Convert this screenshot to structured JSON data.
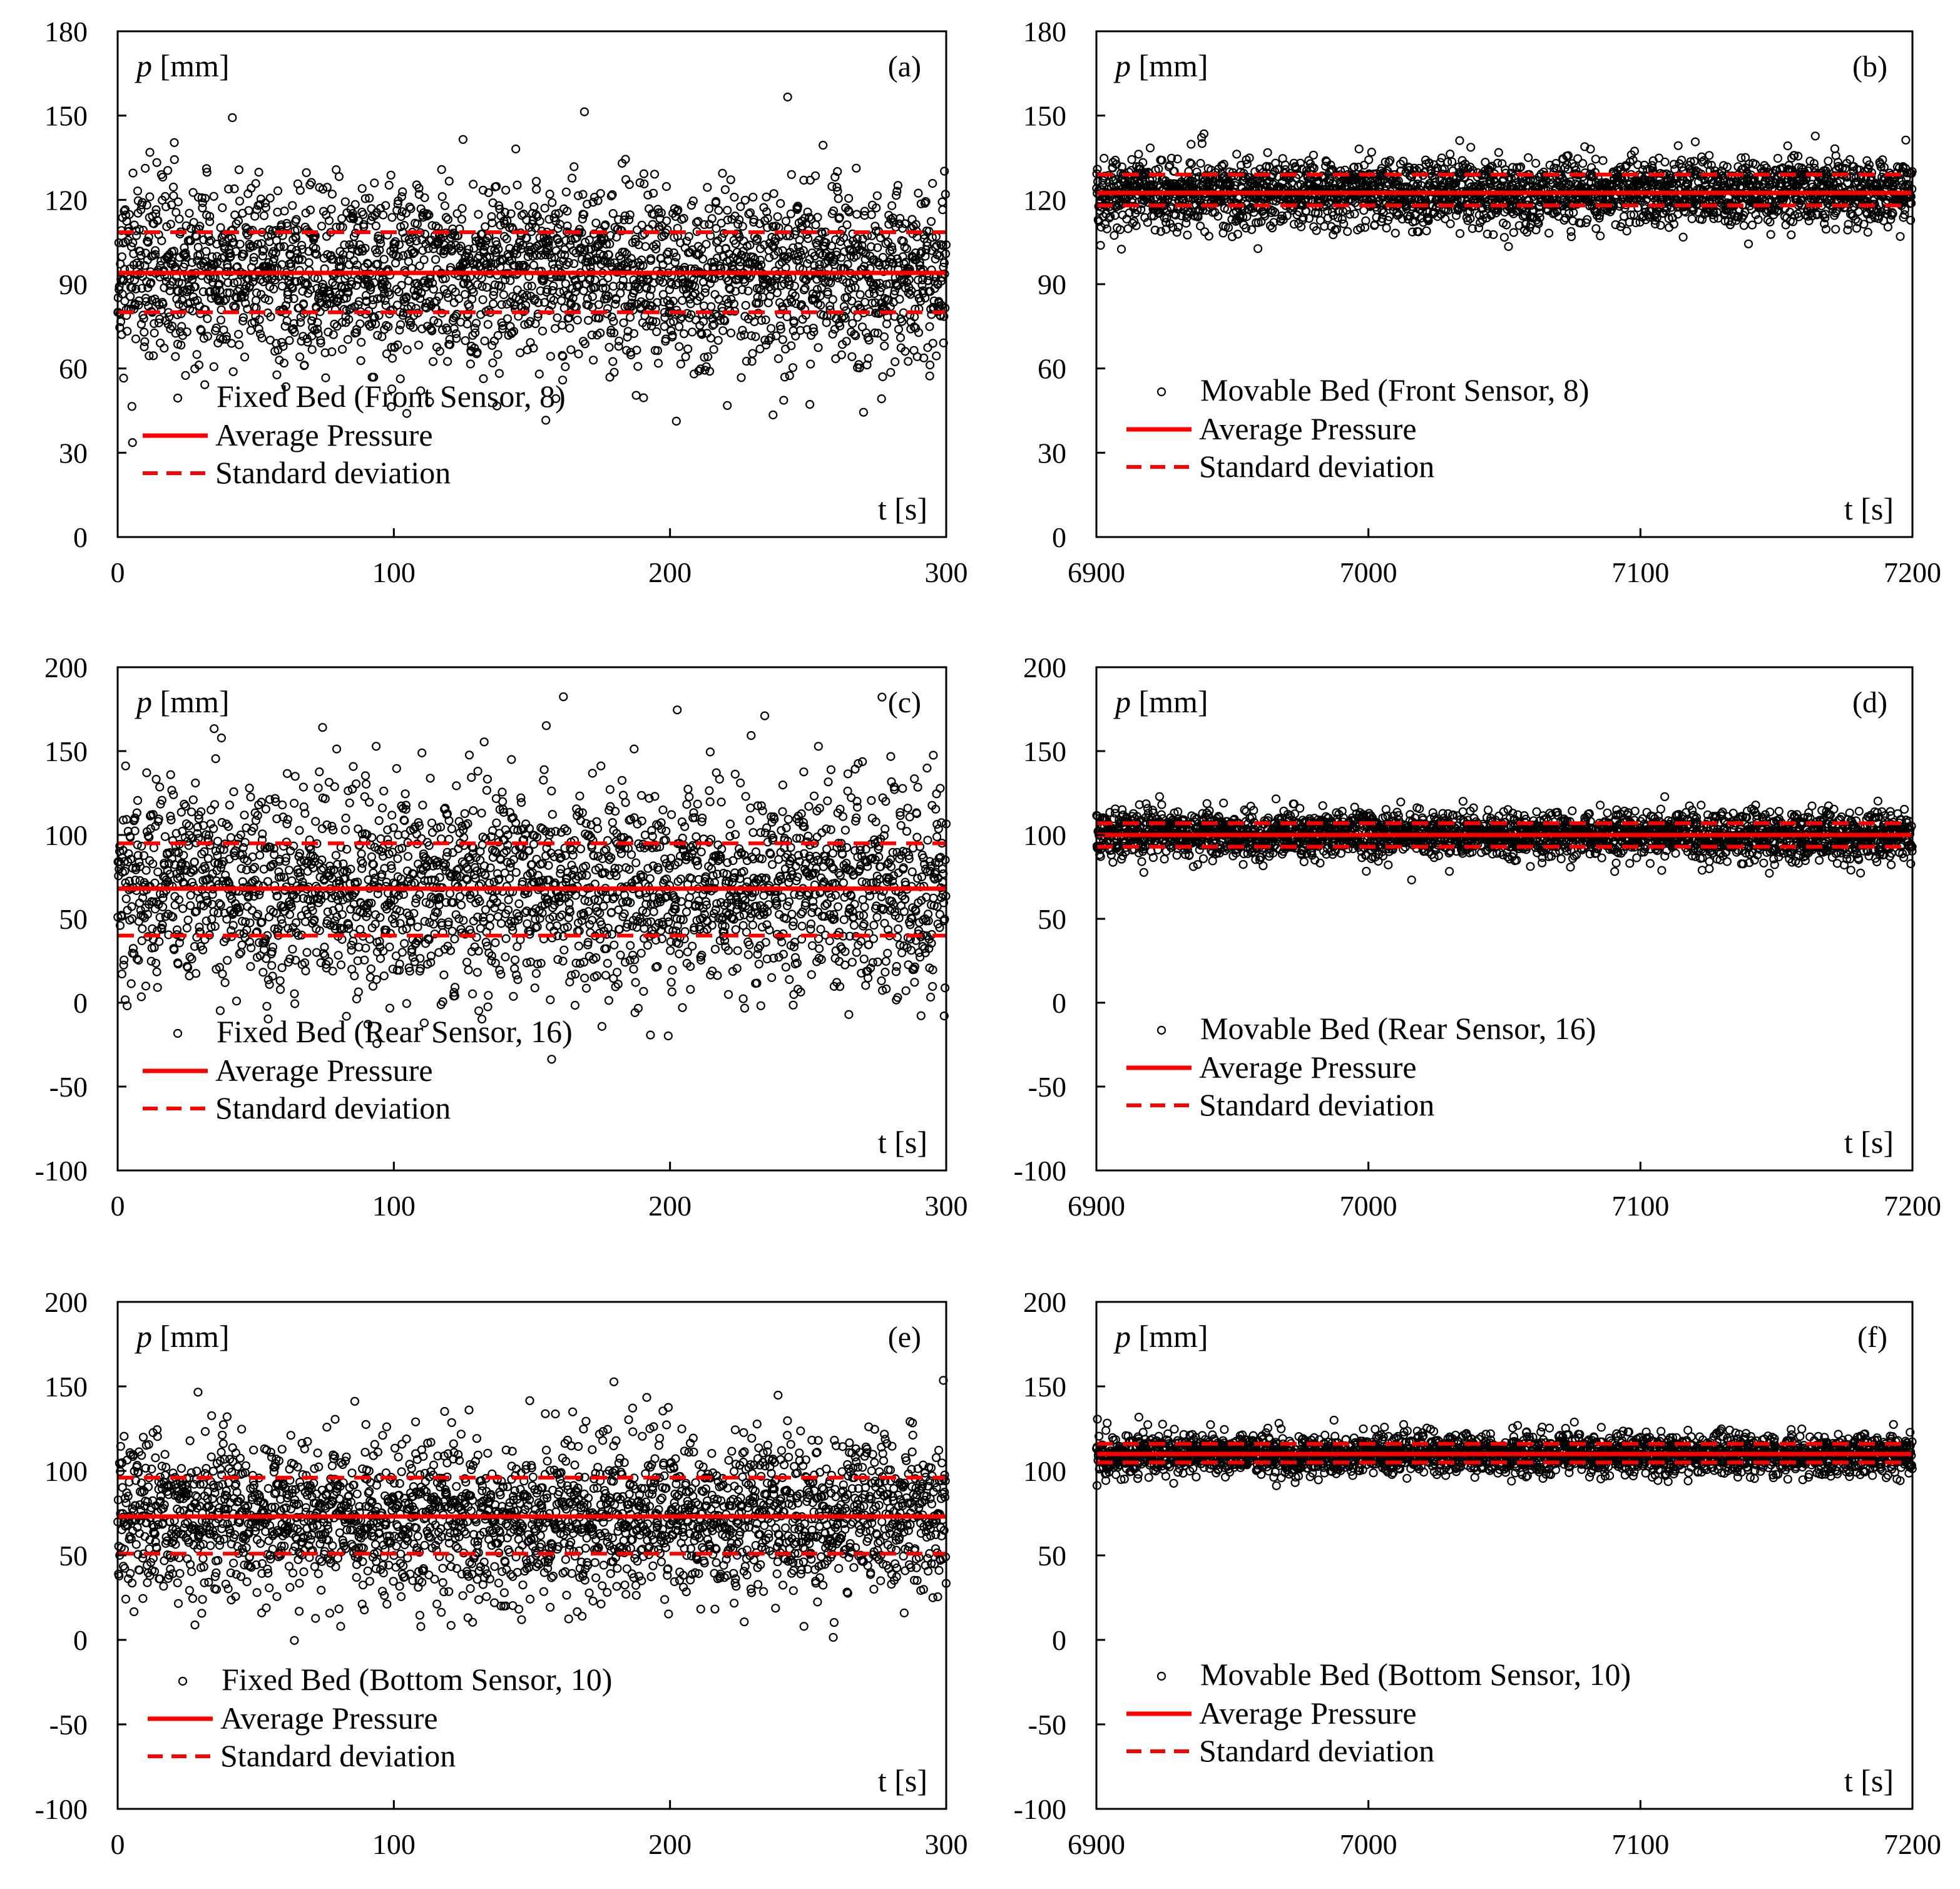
{
  "chart_data": [
    {
      "type": "scatter",
      "panel_label": "(a)",
      "ylabel_var": "p",
      "ylabel_unit": " [mm]",
      "xlabel": "t [s]",
      "xlim": [
        0,
        300
      ],
      "ylim": [
        0,
        180
      ],
      "xticks": [
        0,
        100,
        200,
        300
      ],
      "yticks": [
        0,
        30,
        60,
        90,
        120,
        150,
        180
      ],
      "mean": 94,
      "std_upper": 108.5,
      "std_lower": 80,
      "spread": 16,
      "n_points": 2600,
      "seed": 11,
      "series": [
        {
          "name": "Fixed Bed (Front Sensor, 8)",
          "marker": "open-circle"
        },
        {
          "name": "Average Pressure",
          "style": "solid",
          "color": "#ff0000"
        },
        {
          "name": "Standard deviation",
          "style": "dashed",
          "color": "#ff0000"
        }
      ]
    },
    {
      "type": "scatter",
      "panel_label": "(b)",
      "ylabel_var": "p",
      "ylabel_unit": " [mm]",
      "xlabel": "t [s]",
      "xlim": [
        6900,
        7200
      ],
      "ylim": [
        0,
        180
      ],
      "xticks": [
        6900,
        7000,
        7100,
        7200
      ],
      "yticks": [
        0,
        30,
        60,
        90,
        120,
        150,
        180
      ],
      "mean": 122.5,
      "std_upper": 129,
      "std_lower": 118,
      "spread": 6,
      "n_points": 2600,
      "seed": 22,
      "series": [
        {
          "name": "Movable Bed (Front Sensor, 8)",
          "marker": "open-circle"
        },
        {
          "name": "Average Pressure",
          "style": "solid",
          "color": "#ff0000"
        },
        {
          "name": "Standard deviation",
          "style": "dashed",
          "color": "#ff0000"
        }
      ]
    },
    {
      "type": "scatter",
      "panel_label": "(c)",
      "ylabel_var": "p",
      "ylabel_unit": " [mm]",
      "xlabel": "t [s]",
      "xlim": [
        0,
        300
      ],
      "ylim": [
        -100,
        200
      ],
      "xticks": [
        0,
        100,
        200,
        300
      ],
      "yticks": [
        -100,
        -50,
        0,
        50,
        100,
        150,
        200
      ],
      "mean": 68,
      "std_upper": 95,
      "std_lower": 40,
      "spread": 30,
      "n_points": 2400,
      "seed": 33,
      "series": [
        {
          "name": "Fixed Bed (Rear Sensor, 16)",
          "marker": "open-circle"
        },
        {
          "name": "Average Pressure",
          "style": "solid",
          "color": "#ff0000"
        },
        {
          "name": "Standard deviation",
          "style": "dashed",
          "color": "#ff0000"
        }
      ]
    },
    {
      "type": "scatter",
      "panel_label": "(d)",
      "ylabel_var": "p",
      "ylabel_unit": " [mm]",
      "xlabel": "t [s]",
      "xlim": [
        6900,
        7200
      ],
      "ylim": [
        -100,
        200
      ],
      "xticks": [
        6900,
        7000,
        7100,
        7200
      ],
      "yticks": [
        -100,
        -50,
        0,
        50,
        100,
        150,
        200
      ],
      "mean": 100,
      "std_upper": 107,
      "std_lower": 93,
      "spread": 7,
      "n_points": 2600,
      "seed": 44,
      "series": [
        {
          "name": "Movable Bed (Rear Sensor, 16)",
          "marker": "open-circle"
        },
        {
          "name": "Average Pressure",
          "style": "solid",
          "color": "#ff0000"
        },
        {
          "name": "Standard deviation",
          "style": "dashed",
          "color": "#ff0000"
        }
      ]
    },
    {
      "type": "scatter",
      "panel_label": "(e)",
      "ylabel_var": "p",
      "ylabel_unit": " [mm]",
      "xlabel": "t [s]",
      "xlim": [
        0,
        300
      ],
      "ylim": [
        -100,
        200
      ],
      "xticks": [
        0,
        100,
        200,
        300
      ],
      "yticks": [
        -100,
        -50,
        0,
        50,
        100,
        150,
        200
      ],
      "mean": 73,
      "std_upper": 96,
      "std_lower": 51,
      "spread": 23,
      "n_points": 2500,
      "seed": 55,
      "series": [
        {
          "name": "Fixed Bed (Bottom Sensor, 10)",
          "marker": "open-circle"
        },
        {
          "name": "Average Pressure",
          "style": "solid",
          "color": "#ff0000"
        },
        {
          "name": "Standard deviation",
          "style": "dashed",
          "color": "#ff0000"
        }
      ]
    },
    {
      "type": "scatter",
      "panel_label": "(f)",
      "ylabel_var": "p",
      "ylabel_unit": " [mm]",
      "xlabel": "t [s]",
      "xlim": [
        6900,
        7200
      ],
      "ylim": [
        -100,
        200
      ],
      "xticks": [
        6900,
        7000,
        7100,
        7200
      ],
      "yticks": [
        -100,
        -50,
        0,
        50,
        100,
        150,
        200
      ],
      "mean": 110,
      "std_upper": 116,
      "std_lower": 105,
      "spread": 6,
      "n_points": 2600,
      "seed": 66,
      "series": [
        {
          "name": "Movable Bed (Bottom Sensor, 10)",
          "marker": "open-circle"
        },
        {
          "name": "Average Pressure",
          "style": "solid",
          "color": "#ff0000"
        },
        {
          "name": "Standard deviation",
          "style": "dashed",
          "color": "#ff0000"
        }
      ]
    }
  ]
}
